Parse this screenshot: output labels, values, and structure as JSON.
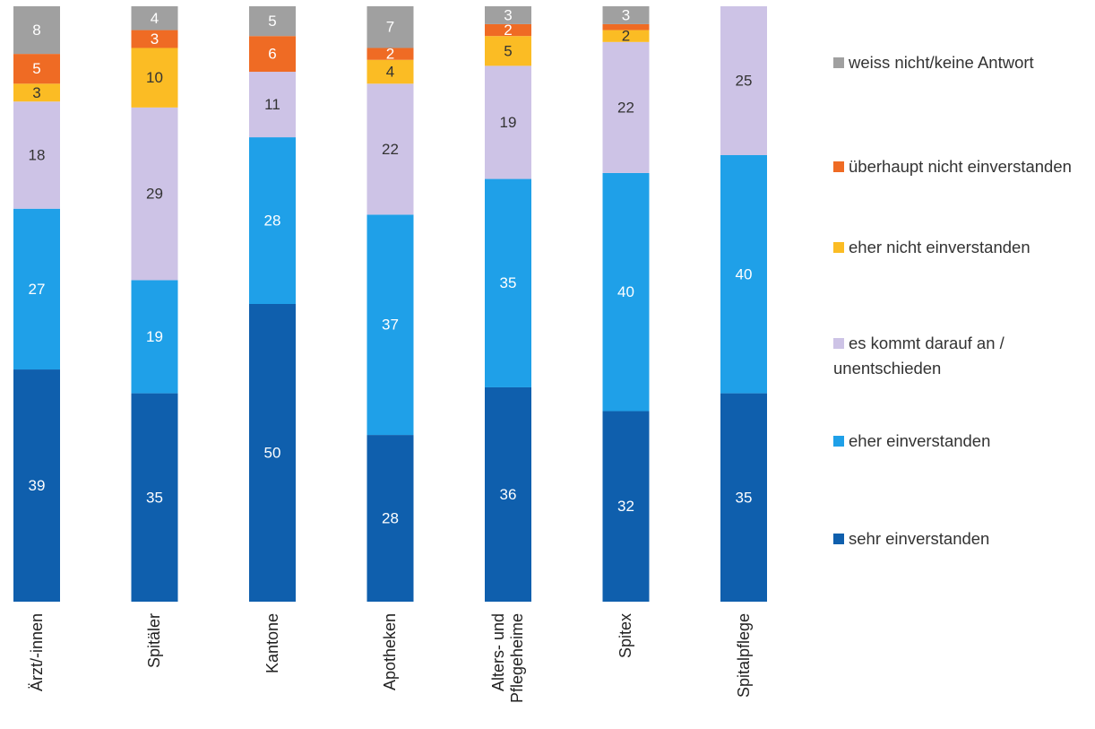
{
  "chart_data": {
    "type": "stacked_bar",
    "categories": [
      "Ärzt/-innen",
      "Spitäler",
      "Kantone",
      "Apotheken",
      "Alters- und Pflegeheime",
      "Spitex",
      "Spitalpflege"
    ],
    "ylim": [
      0,
      100
    ],
    "series": [
      {
        "name": "sehr einverstanden",
        "color": "#0f5fad",
        "values": [
          39,
          35,
          50,
          28,
          36,
          32,
          35
        ]
      },
      {
        "name": "eher einverstanden",
        "color": "#1fa0e8",
        "values": [
          27,
          19,
          28,
          37,
          35,
          40,
          40
        ]
      },
      {
        "name": "es kommt darauf an / unentschieden",
        "color": "#cdc3e6",
        "values": [
          18,
          29,
          11,
          22,
          19,
          22,
          25
        ]
      },
      {
        "name": "eher nicht einverstanden",
        "color": "#fbbc24",
        "values": [
          3,
          10,
          null,
          4,
          5,
          2,
          null
        ]
      },
      {
        "name": "überhaupt nicht einverstanden",
        "color": "#ef6b24",
        "values": [
          5,
          3,
          6,
          2,
          2,
          1,
          null
        ]
      },
      {
        "name": "weiss nicht/keine Antwort",
        "color": "#a0a0a0",
        "values": [
          8,
          4,
          5,
          7,
          3,
          3,
          null
        ]
      }
    ],
    "legend": "right"
  }
}
